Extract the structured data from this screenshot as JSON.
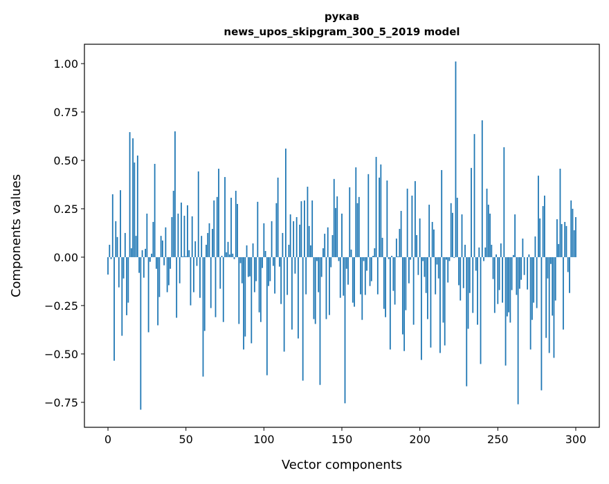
{
  "chart_data": {
    "type": "bar",
    "title": "рукав",
    "subtitle": "news_upos_skipgram_300_5_2019 model",
    "xlabel": "Vector components",
    "ylabel": "Components values",
    "xlim": [
      -15.1,
      315.1
    ],
    "ylim": [
      -0.879,
      1.1
    ],
    "xticks": [
      0,
      50,
      100,
      150,
      200,
      250,
      300
    ],
    "xtick_labels": [
      "0",
      "50",
      "100",
      "150",
      "200",
      "250",
      "300"
    ],
    "yticks": [
      -0.75,
      -0.5,
      -0.25,
      0,
      0.25,
      0.5,
      0.75,
      1.0
    ],
    "ytick_labels": [
      "−0.75",
      "−0.50",
      "−0.25",
      "0.00",
      "0.25",
      "0.50",
      "0.75",
      "1.00"
    ],
    "grid": false,
    "color": "#1f77b4",
    "values": [
      -0.09,
      0.064,
      -0.01,
      0.325,
      -0.535,
      0.186,
      0.104,
      -0.156,
      0.346,
      -0.406,
      -0.11,
      0.125,
      -0.3,
      -0.235,
      0.646,
      0.046,
      0.614,
      0.489,
      0.11,
      0.525,
      -0.081,
      -0.788,
      0.036,
      -0.106,
      0.043,
      0.225,
      -0.388,
      -0.024,
      0.018,
      0.182,
      0.482,
      -0.06,
      -0.352,
      -0.206,
      0.11,
      0.086,
      -0.042,
      0.154,
      -0.181,
      -0.145,
      -0.06,
      0.207,
      0.343,
      0.65,
      -0.313,
      0.225,
      -0.135,
      0.282,
      0.004,
      0.214,
      0.005,
      0.268,
      0.036,
      -0.249,
      0.211,
      -0.181,
      0.082,
      -0.045,
      0.443,
      -0.21,
      0.11,
      -0.617,
      -0.381,
      0.064,
      0.125,
      0.175,
      -0.263,
      0.146,
      0.293,
      -0.31,
      0.311,
      0.457,
      -0.163,
      0.007,
      -0.335,
      0.414,
      0.025,
      0.079,
      0.014,
      0.307,
      0.018,
      -0.01,
      0.343,
      0.275,
      -0.345,
      -0.031,
      -0.135,
      -0.477,
      -0.41,
      0.061,
      -0.102,
      -0.099,
      -0.445,
      0.071,
      -0.181,
      -0.124,
      0.286,
      -0.285,
      -0.335,
      -0.056,
      0.175,
      0.032,
      -0.61,
      -0.149,
      -0.124,
      0.186,
      -0.045,
      -0.188,
      0.279,
      0.411,
      -0.049,
      -0.242,
      0.125,
      -0.488,
      0.561,
      -0.195,
      0.064,
      0.221,
      -0.374,
      0.186,
      -0.085,
      0.207,
      -0.42,
      0.168,
      0.289,
      -0.638,
      0.293,
      -0.192,
      0.364,
      0.161,
      0.061,
      0.293,
      -0.32,
      -0.345,
      -0.02,
      -0.181,
      -0.66,
      -0.102,
      0.046,
      0.121,
      -0.32,
      0.154,
      -0.299,
      -0.052,
      0.114,
      0.404,
      0.254,
      0.314,
      -0.02,
      -0.21,
      0.225,
      -0.199,
      -0.755,
      -0.06,
      -0.142,
      0.361,
      0.039,
      -0.235,
      -0.256,
      0.464,
      0.279,
      0.311,
      -0.192,
      -0.324,
      -0.02,
      -0.195,
      -0.07,
      0.429,
      -0.149,
      -0.124,
      0.007,
      0.046,
      0.518,
      -0.192,
      0.411,
      0.479,
      0.1,
      -0.267,
      -0.31,
      0.396,
      -0.01,
      -0.477,
      0.007,
      -0.174,
      -0.245,
      0.096,
      0.004,
      0.146,
      0.239,
      -0.399,
      -0.485,
      -0.274,
      0.354,
      -0.135,
      -0.013,
      0.318,
      -0.349,
      0.393,
      0.114,
      -0.092,
      0.2,
      -0.531,
      -0.02,
      -0.102,
      -0.185,
      -0.32,
      0.271,
      -0.467,
      0.182,
      0.143,
      -0.192,
      -0.038,
      -0.11,
      -0.495,
      0.45,
      -0.338,
      -0.456,
      -0.013,
      -0.131,
      -0.02,
      0.279,
      0.229,
      -0.004,
      1.011,
      0.307,
      -0.145,
      -0.224,
      0.221,
      -0.16,
      0.064,
      -0.667,
      -0.37,
      -0.185,
      0.461,
      -0.288,
      0.636,
      -0.07,
      -0.349,
      0.05,
      -0.552,
      0.707,
      -0.02,
      0.05,
      0.354,
      0.271,
      0.225,
      0.064,
      -0.113,
      -0.288,
      0.014,
      -0.242,
      -0.17,
      0.071,
      -0.235,
      0.568,
      -0.56,
      -0.306,
      -0.285,
      -0.338,
      -0.17,
      0.011,
      0.221,
      -0.195,
      -0.76,
      -0.163,
      -0.117,
      0.096,
      -0.092,
      0.0,
      -0.167,
      0.014,
      -0.477,
      -0.324,
      -0.235,
      0.107,
      -0.263,
      0.421,
      0.2,
      -0.688,
      0.264,
      0.318,
      -0.417,
      -0.11,
      -0.495,
      -0.035,
      -0.302,
      -0.52,
      -0.224,
      0.196,
      0.068,
      0.457,
      0.171,
      -0.374,
      0.182,
      0.161,
      -0.077,
      -0.185,
      0.293,
      0.25,
      0.139,
      0.207
    ]
  }
}
